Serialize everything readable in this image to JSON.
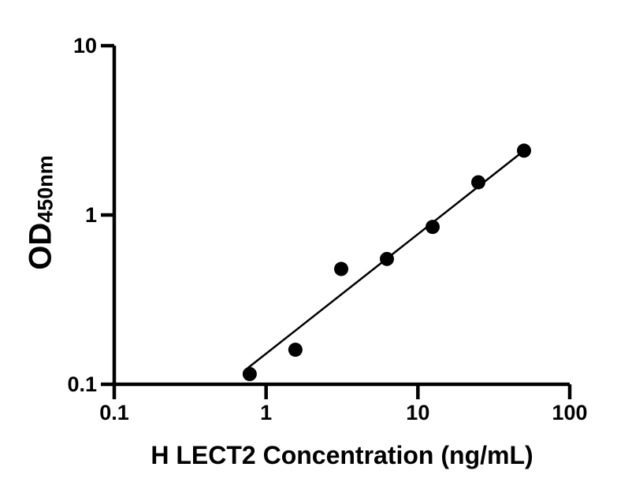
{
  "figure": {
    "background": "#ffffff",
    "ink_color": "#000000"
  },
  "chart_data": {
    "type": "scatter",
    "title": "",
    "xlabel": "H LECT2 Concentration (ng/mL)",
    "ylabel_main": "OD",
    "ylabel_sub": "450nm",
    "x_scale": "log10",
    "y_scale": "log10",
    "xlim": [
      0.1,
      100
    ],
    "ylim": [
      0.1,
      10
    ],
    "grid": false,
    "legend": "none",
    "x_ticks": [
      {
        "value": 0.1,
        "label": "0.1"
      },
      {
        "value": 1,
        "label": "1"
      },
      {
        "value": 10,
        "label": "10"
      },
      {
        "value": 100,
        "label": "100"
      }
    ],
    "y_ticks": [
      {
        "value": 0.1,
        "label": "0.1"
      },
      {
        "value": 1,
        "label": "1"
      },
      {
        "value": 10,
        "label": "10"
      }
    ],
    "series": [
      {
        "name": "standard-points",
        "type": "scatter",
        "marker": "filled-circle",
        "color": "#000000",
        "x": [
          0.78,
          1.56,
          3.125,
          6.25,
          12.5,
          25,
          50
        ],
        "y": [
          0.115,
          0.16,
          0.48,
          0.55,
          0.85,
          1.56,
          2.4
        ]
      },
      {
        "name": "fit-line",
        "type": "line",
        "color": "#000000",
        "x": [
          0.76,
          50
        ],
        "y": [
          0.125,
          2.4
        ]
      }
    ]
  }
}
